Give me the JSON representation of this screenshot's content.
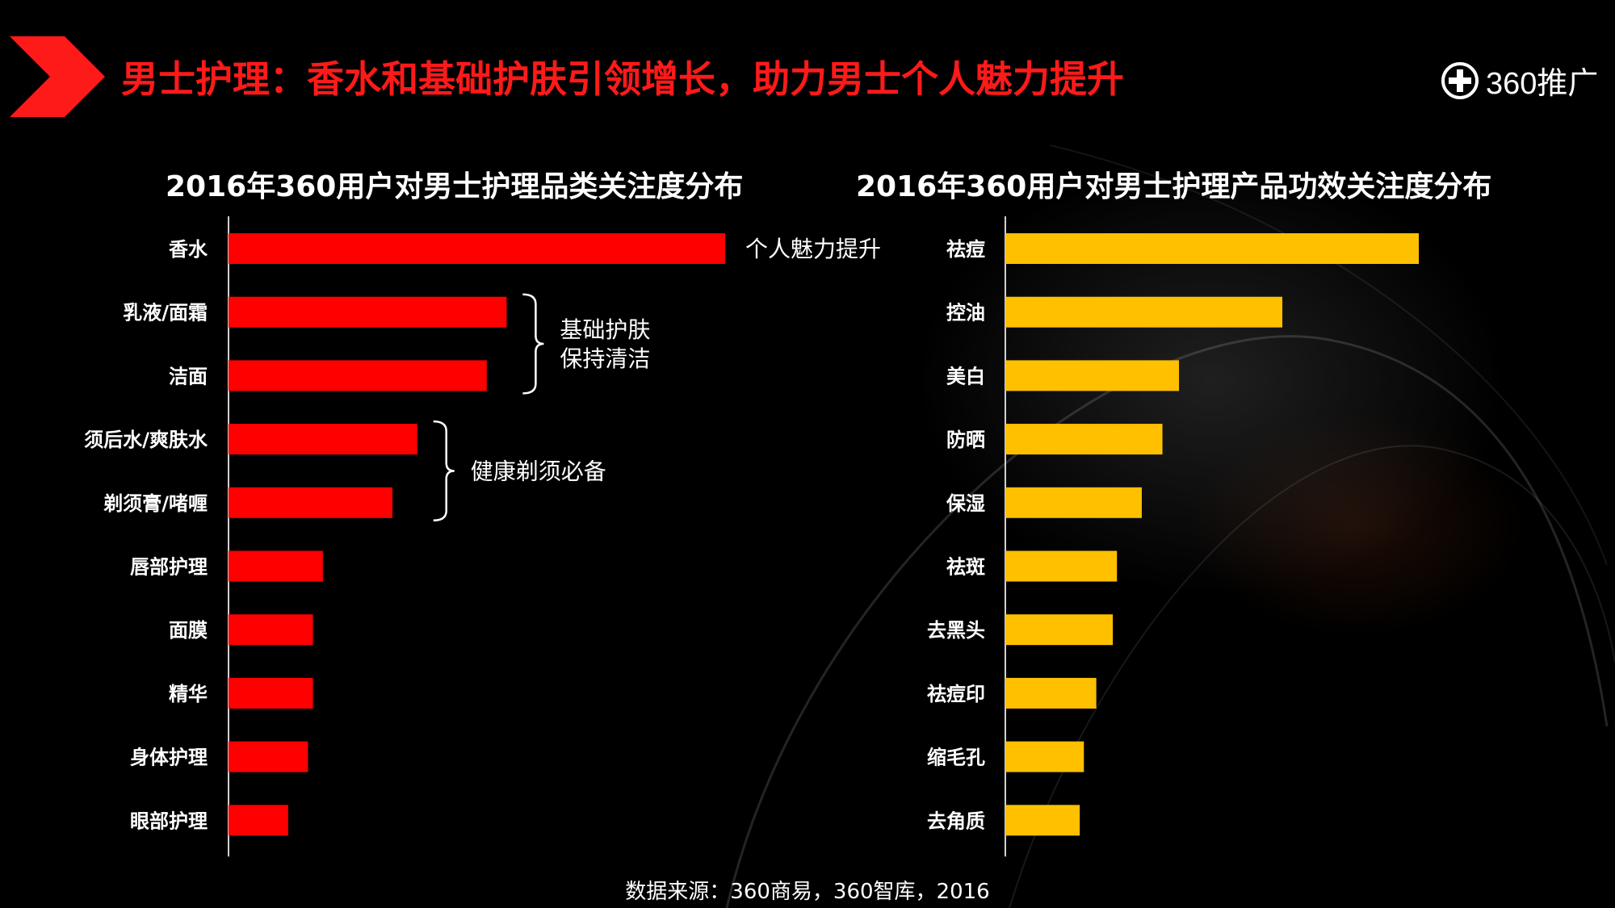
{
  "header": {
    "title": "男士护理：香水和基础护肤引领增长，助力男士个人魅力提升",
    "logo_text": "360推广",
    "accent_color": "#ff1a1a"
  },
  "chart_data": [
    {
      "type": "bar",
      "orientation": "horizontal",
      "title": "2016年360用户对男士护理品类关注度分布",
      "color": "#ff0000",
      "categories": [
        "香水",
        "乳液/面霜",
        "洁面",
        "须后水/爽肤水",
        "剃须膏/啫喱",
        "唇部护理",
        "面膜",
        "精华",
        "身体护理",
        "眼部护理"
      ],
      "values": [
        100,
        56,
        52,
        38,
        33,
        19,
        17,
        17,
        16,
        12
      ],
      "xlim": [
        0,
        100
      ],
      "annotations": [
        {
          "text": "个人魅力提升",
          "categories": [
            "香水"
          ]
        },
        {
          "text": "基础护肤\n保持清洁",
          "categories": [
            "乳液/面霜",
            "洁面"
          ]
        },
        {
          "text": "健康剃须必备",
          "categories": [
            "须后水/爽肤水",
            "剃须膏/啫喱"
          ]
        }
      ]
    },
    {
      "type": "bar",
      "orientation": "horizontal",
      "title": "2016年360用户对男士护理产品功效关注度分布",
      "color": "#ffc000",
      "categories": [
        "祛痘",
        "控油",
        "美白",
        "防晒",
        "保湿",
        "祛斑",
        "去黑头",
        "祛痘印",
        "缩毛孔",
        "去角质"
      ],
      "values": [
        100,
        67,
        42,
        38,
        33,
        27,
        26,
        22,
        19,
        18
      ],
      "xlim": [
        0,
        100
      ]
    }
  ],
  "footer": {
    "source": "数据来源：360商易，360智库，2016"
  }
}
